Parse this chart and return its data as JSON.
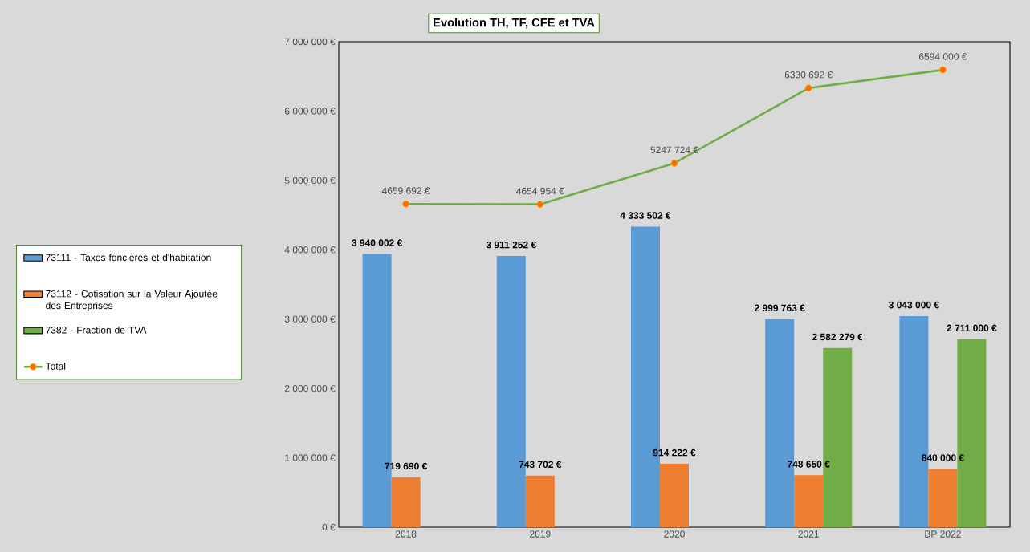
{
  "chart_data": {
    "type": "bar",
    "title": "Evolution TH, TF, CFE et TVA",
    "categories": [
      "2018",
      "2019",
      "2020",
      "2021",
      "BP 2022"
    ],
    "series": [
      {
        "name": "73111 - Taxes foncières et d'habitation",
        "color": "#5b9bd5",
        "values": [
          3940002,
          3911252,
          4333502,
          2999763,
          3043000
        ],
        "value_labels": [
          "3 940 002 €",
          "3 911 252 €",
          "4 333 502 €",
          "2 999 763 €",
          "3 043 000 €"
        ]
      },
      {
        "name": "73112 - Cotisation sur la Valeur Ajoutée des Entreprises",
        "color": "#ed7d31",
        "values": [
          719690,
          743702,
          914222,
          748650,
          840000
        ],
        "value_labels": [
          "719 690 €",
          "743 702 €",
          "914 222 €",
          "748 650 €",
          "840 000 €"
        ]
      },
      {
        "name": "7382 - Fraction de TVA",
        "color": "#70ad47",
        "values": [
          null,
          null,
          null,
          2582279,
          2711000
        ],
        "value_labels": [
          null,
          null,
          null,
          "2 582 279 €",
          "2 711 000 €"
        ]
      },
      {
        "name": "Total",
        "type": "line",
        "color": "#70ad47",
        "marker": "circle",
        "values": [
          4659692,
          4654954,
          5247724,
          6330692,
          6594000
        ],
        "value_labels": [
          "4659 692 €",
          "4654 954 €",
          "5247 724 €",
          "6330 692 €",
          "6594 000 €"
        ]
      }
    ],
    "ylim": [
      0,
      7000000
    ],
    "yticks": [
      {
        "value": 0,
        "label": "0 €"
      },
      {
        "value": 1000000,
        "label": "1 000 000 €"
      },
      {
        "value": 2000000,
        "label": "2 000 000 €"
      },
      {
        "value": 3000000,
        "label": "3 000 000 €"
      },
      {
        "value": 4000000,
        "label": "4 000 000 €"
      },
      {
        "value": 5000000,
        "label": "5 000 000 €"
      },
      {
        "value": 6000000,
        "label": "6 000 000 €"
      },
      {
        "value": 7000000,
        "label": "7 000 000 €"
      }
    ],
    "legend": "left"
  }
}
